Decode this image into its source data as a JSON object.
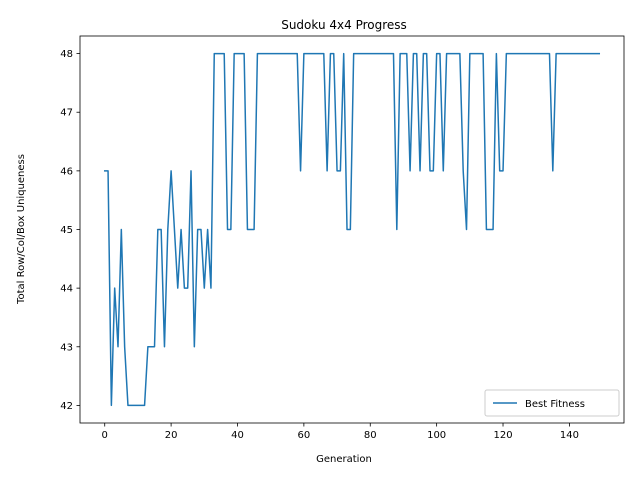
{
  "chart_data": {
    "type": "line",
    "title": "Sudoku 4x4 Progress",
    "xlabel": "Generation",
    "ylabel": "Total Row/Col/Box Uniqueness",
    "xlim": [
      -7.45,
      156.45
    ],
    "ylim": [
      41.7,
      48.3
    ],
    "xticks": [
      0,
      20,
      40,
      60,
      80,
      100,
      120,
      140
    ],
    "yticks": [
      42,
      43,
      44,
      45,
      46,
      47,
      48
    ],
    "grid": false,
    "legend_position": "lower-right",
    "series": [
      {
        "name": "Best Fitness",
        "color": "#1f77b4",
        "x": [
          0,
          1,
          2,
          3,
          4,
          5,
          6,
          7,
          8,
          9,
          10,
          11,
          12,
          13,
          14,
          15,
          16,
          17,
          18,
          19,
          20,
          21,
          22,
          23,
          24,
          25,
          26,
          27,
          28,
          29,
          30,
          31,
          32,
          33,
          34,
          35,
          36,
          37,
          38,
          39,
          40,
          41,
          42,
          43,
          44,
          45,
          46,
          47,
          48,
          49,
          50,
          51,
          52,
          53,
          54,
          55,
          56,
          57,
          58,
          59,
          60,
          61,
          62,
          63,
          64,
          65,
          66,
          67,
          68,
          69,
          70,
          71,
          72,
          73,
          74,
          75,
          76,
          77,
          78,
          79,
          80,
          81,
          82,
          83,
          84,
          85,
          86,
          87,
          88,
          89,
          90,
          91,
          92,
          93,
          94,
          95,
          96,
          97,
          98,
          99,
          100,
          101,
          102,
          103,
          104,
          105,
          106,
          107,
          108,
          109,
          110,
          111,
          112,
          113,
          114,
          115,
          116,
          117,
          118,
          119,
          120,
          121,
          122,
          123,
          124,
          125,
          126,
          127,
          128,
          129,
          130,
          131,
          132,
          133,
          134,
          135,
          136,
          137,
          138,
          139,
          140,
          141,
          142,
          143,
          144,
          145,
          146,
          147,
          148,
          149
        ],
        "y": [
          46,
          46,
          42,
          44,
          43,
          45,
          43,
          42,
          42,
          42,
          42,
          42,
          42,
          43,
          43,
          43,
          45,
          45,
          43,
          45,
          46,
          45,
          44,
          45,
          44,
          44,
          46,
          43,
          45,
          45,
          44,
          45,
          44,
          48,
          48,
          48,
          48,
          45,
          45,
          48,
          48,
          48,
          48,
          45,
          45,
          45,
          48,
          48,
          48,
          48,
          48,
          48,
          48,
          48,
          48,
          48,
          48,
          48,
          48,
          46,
          48,
          48,
          48,
          48,
          48,
          48,
          48,
          46,
          48,
          48,
          46,
          46,
          48,
          45,
          45,
          48,
          48,
          48,
          48,
          48,
          48,
          48,
          48,
          48,
          48,
          48,
          48,
          48,
          45,
          48,
          48,
          48,
          46,
          48,
          48,
          46,
          48,
          48,
          46,
          46,
          48,
          48,
          46,
          48,
          48,
          48,
          48,
          48,
          46,
          45,
          48,
          48,
          48,
          48,
          48,
          45,
          45,
          45,
          48,
          46,
          46,
          48,
          48,
          48,
          48,
          48,
          48,
          48,
          48,
          48,
          48,
          48,
          48,
          48,
          48,
          46,
          48,
          48,
          48,
          48,
          48,
          48,
          48,
          48,
          48,
          48,
          48,
          48,
          48,
          48
        ]
      }
    ]
  }
}
